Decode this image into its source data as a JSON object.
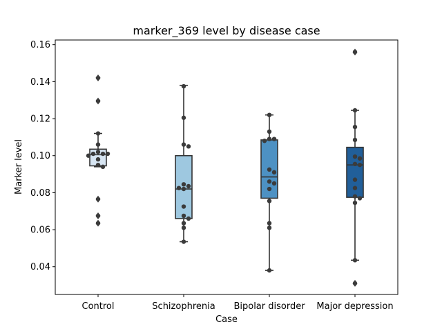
{
  "chart_data": {
    "type": "box",
    "title": "marker_369 level by disease case",
    "xlabel": "Case",
    "ylabel": "Marker level",
    "ylim": [
      0.025,
      0.1625
    ],
    "yticks": [
      "0.04",
      "0.06",
      "0.08",
      "0.10",
      "0.12",
      "0.14",
      "0.16"
    ],
    "categories": [
      "Control",
      "Schizophrenia",
      "Bipolar disorder",
      "Major depression"
    ],
    "colors": [
      "#d8e6f3",
      "#9ec8e0",
      "#4d91c3",
      "#215f9a"
    ],
    "edge_color": "#333333",
    "grid": false,
    "boxes": [
      {
        "q1": 0.0945,
        "median": 0.1005,
        "q3": 0.1035,
        "whisker_low": 0.094,
        "whisker_high": 0.112,
        "fliers": [
          0.142,
          0.1295,
          0.0765,
          0.0675,
          0.0635
        ]
      },
      {
        "q1": 0.066,
        "median": 0.082,
        "q3": 0.1,
        "whisker_low": 0.0535,
        "whisker_high": 0.138,
        "fliers": []
      },
      {
        "q1": 0.077,
        "median": 0.0885,
        "q3": 0.1085,
        "whisker_low": 0.038,
        "whisker_high": 0.122,
        "fliers": []
      },
      {
        "q1": 0.0775,
        "median": 0.095,
        "q3": 0.1045,
        "whisker_low": 0.0435,
        "whisker_high": 0.1245,
        "fliers": [
          0.156,
          0.031
        ]
      }
    ],
    "points": [
      [
        0.142,
        0.1295,
        0.112,
        0.106,
        0.102,
        0.101,
        0.101,
        0.101,
        0.1,
        0.098,
        0.095,
        0.094,
        0.0765,
        0.0675,
        0.0635
      ],
      [
        0.1375,
        0.1205,
        0.106,
        0.105,
        0.0845,
        0.0835,
        0.0825,
        0.082,
        0.0725,
        0.0675,
        0.066,
        0.0635,
        0.061,
        0.0535
      ],
      [
        0.122,
        0.113,
        0.109,
        0.109,
        0.108,
        0.0925,
        0.091,
        0.086,
        0.085,
        0.082,
        0.0755,
        0.0635,
        0.061,
        0.038
      ],
      [
        0.156,
        0.1245,
        0.1155,
        0.1085,
        0.0995,
        0.0985,
        0.0955,
        0.095,
        0.087,
        0.0825,
        0.078,
        0.077,
        0.0745,
        0.0435,
        0.031
      ]
    ]
  }
}
